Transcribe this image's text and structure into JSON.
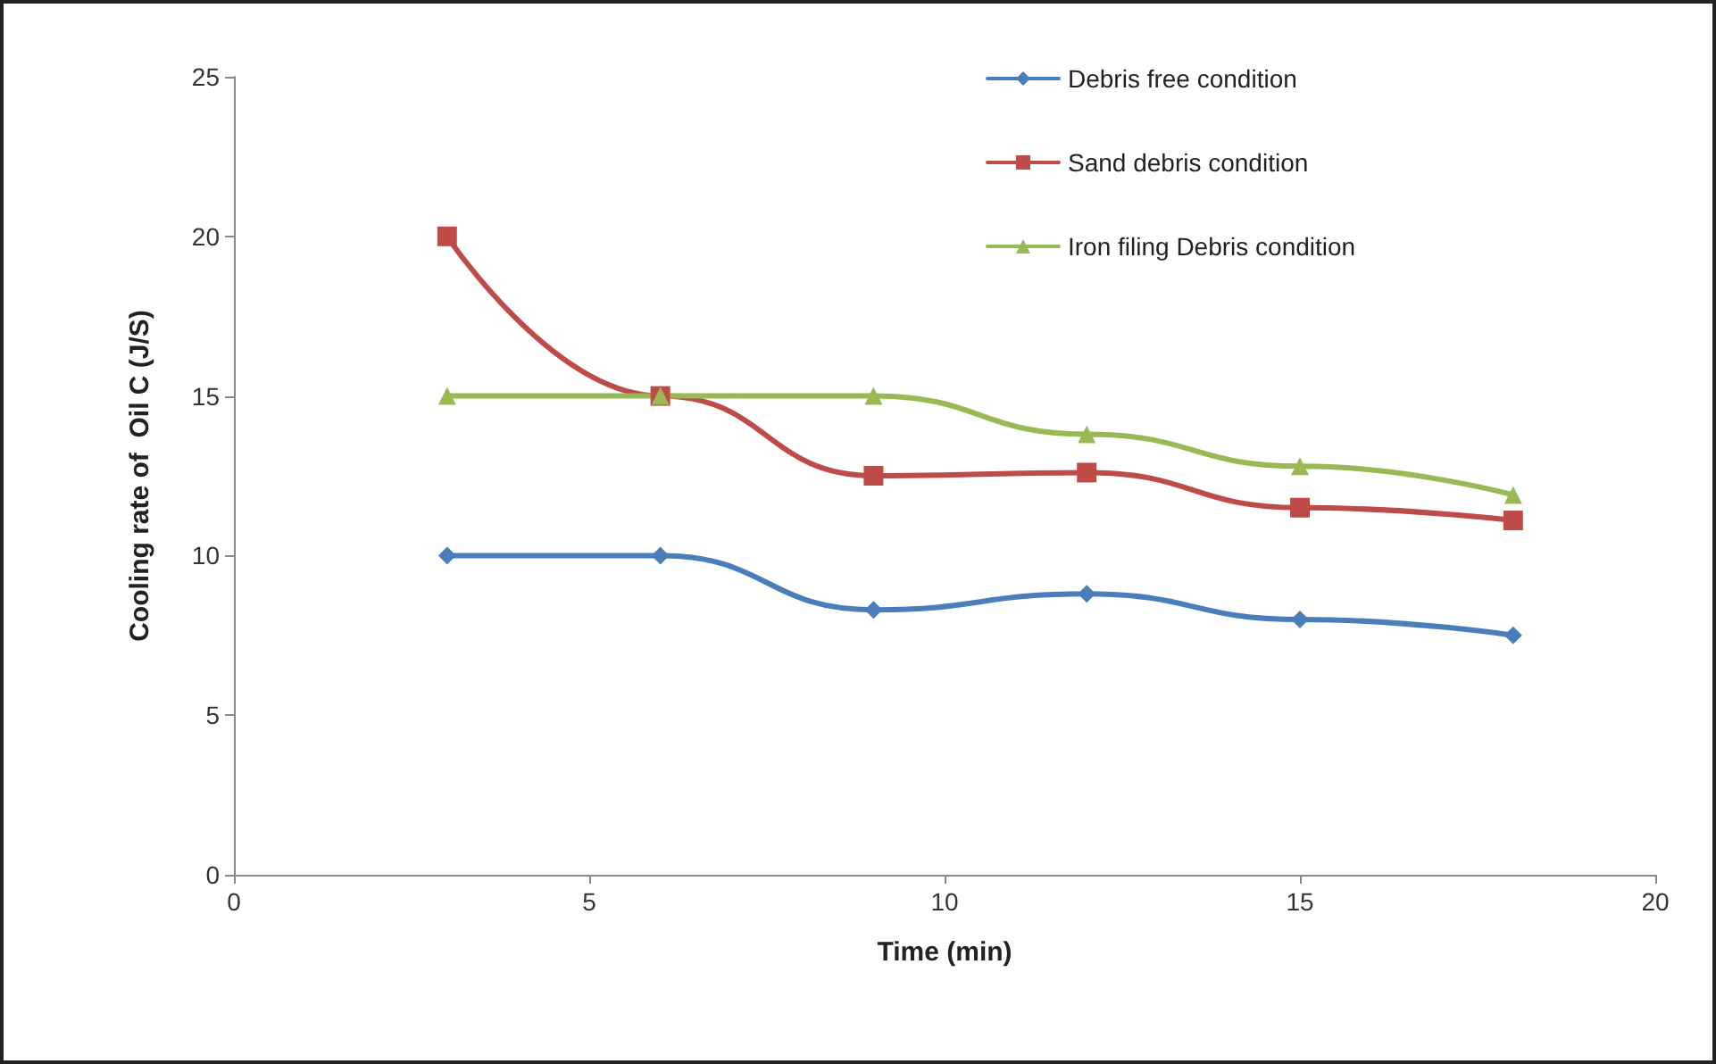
{
  "chart_data": {
    "type": "line",
    "xlabel": "Time (min)",
    "ylabel": "Cooling rate of  Oil C (J/S)",
    "x": [
      3,
      6,
      9,
      12,
      15,
      18
    ],
    "series": [
      {
        "name": "Debris free condition",
        "color": "#4a7ebb",
        "marker": "diamond",
        "values": [
          10,
          10,
          8.3,
          8.8,
          8.0,
          7.5
        ]
      },
      {
        "name": "Sand debris condition",
        "color": "#be4b48",
        "marker": "square",
        "values": [
          20,
          15,
          12.5,
          12.6,
          11.5,
          11.1
        ]
      },
      {
        "name": "Iron filing Debris condition",
        "color": "#98b954",
        "marker": "triangle",
        "values": [
          15,
          15,
          15,
          13.8,
          12.8,
          11.9
        ]
      }
    ],
    "xlim": [
      0,
      20
    ],
    "xticks": [
      0,
      5,
      10,
      15,
      20
    ],
    "ylim": [
      0,
      25
    ],
    "yticks": [
      0,
      5,
      10,
      15,
      20,
      25
    ],
    "grid": false,
    "legend": "top right",
    "line_style": "solid"
  }
}
